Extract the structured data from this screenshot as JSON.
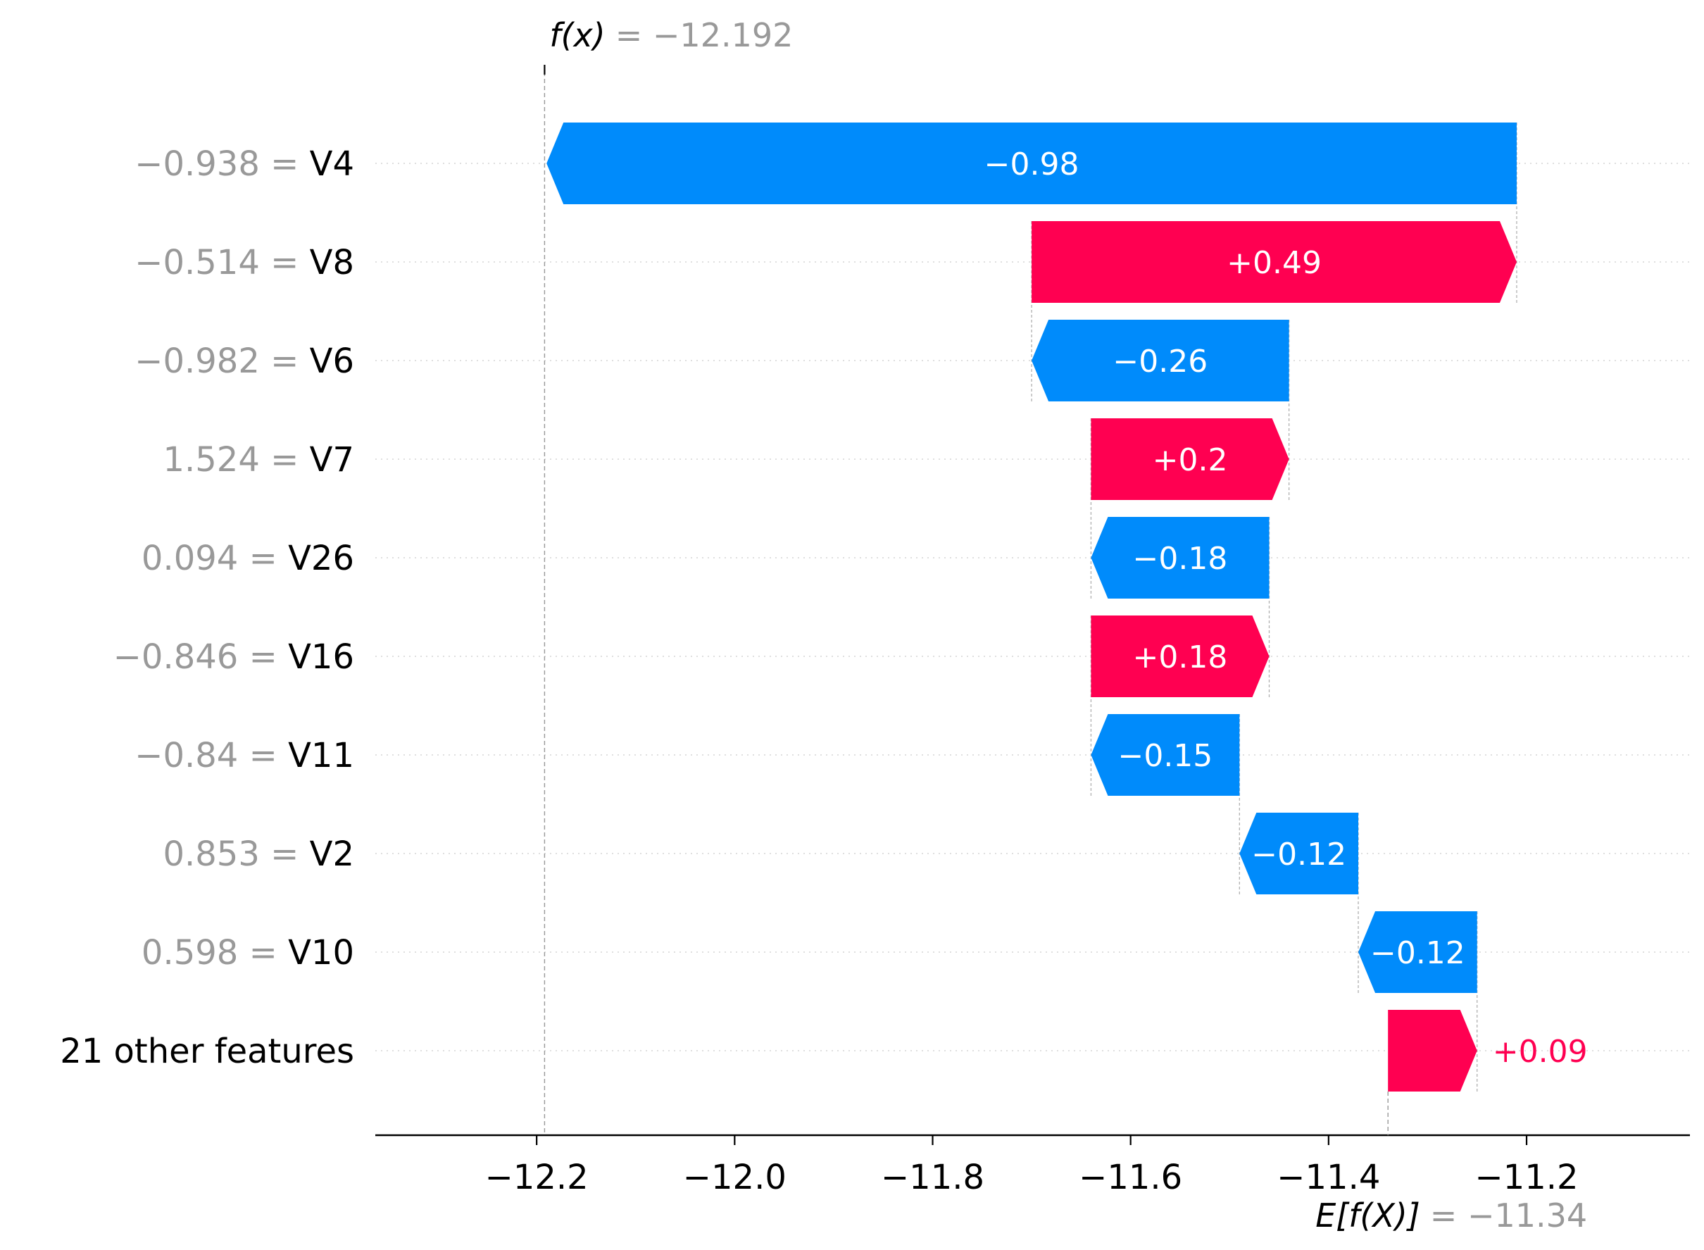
{
  "chart_data": {
    "type": "waterfall",
    "output": {
      "label": "f(x)",
      "value_text": "= −12.192",
      "value": -12.192
    },
    "base": {
      "label": "E[f(X)]",
      "value_text": "= −11.34",
      "value": -11.34
    },
    "features": [
      {
        "name": "V4",
        "value": "−0.938",
        "contribution": -0.98,
        "label": "−0.98"
      },
      {
        "name": "V8",
        "value": "−0.514",
        "contribution": 0.49,
        "label": "+0.49"
      },
      {
        "name": "V6",
        "value": "−0.982",
        "contribution": -0.26,
        "label": "−0.26"
      },
      {
        "name": "V7",
        "value": "1.524",
        "contribution": 0.2,
        "label": "+0.2"
      },
      {
        "name": "V26",
        "value": "0.094",
        "contribution": -0.18,
        "label": "−0.18"
      },
      {
        "name": "V16",
        "value": "−0.846",
        "contribution": 0.18,
        "label": "+0.18"
      },
      {
        "name": "V11",
        "value": "−0.84",
        "contribution": -0.15,
        "label": "−0.15"
      },
      {
        "name": "V2",
        "value": "0.853",
        "contribution": -0.12,
        "label": "−0.12"
      },
      {
        "name": "V10",
        "value": "0.598",
        "contribution": -0.12,
        "label": "−0.12"
      },
      {
        "name": "21 other features",
        "value": "",
        "contribution": 0.09,
        "label": "+0.09"
      }
    ],
    "x_ticks": [
      {
        "value": -12.2,
        "label": "−12.2"
      },
      {
        "value": -12.0,
        "label": "−12.0"
      },
      {
        "value": -11.8,
        "label": "−11.8"
      },
      {
        "value": -11.6,
        "label": "−11.6"
      },
      {
        "value": -11.4,
        "label": "−11.4"
      },
      {
        "value": -11.2,
        "label": "−11.2"
      }
    ],
    "xlim": [
      -12.363,
      -11.035
    ],
    "colors": {
      "positive": "#ff0051",
      "negative": "#008bfb",
      "label_inside": "#ffffff",
      "grid": "#cccccc",
      "muted": "#999999"
    }
  }
}
